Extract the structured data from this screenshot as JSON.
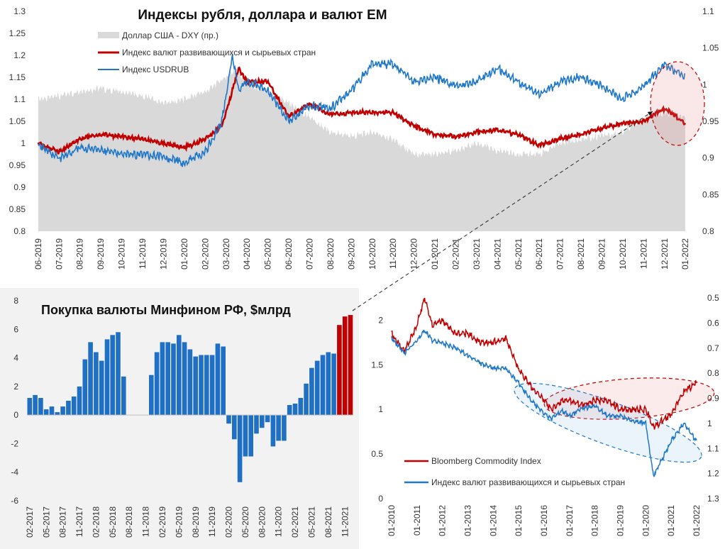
{
  "colors": {
    "dxy": "#d9d9d9",
    "em": "#c00000",
    "usdrub": "#1f77c8",
    "bars_pos": "#1f6fc5",
    "bars_recent": "#c00000",
    "bcom": "#c00000",
    "em2": "#1f77c8"
  },
  "chart_data": [
    {
      "id": "top",
      "type": "line",
      "title": "Индексы рубля, доллара и валют ЕМ",
      "legend": [
        "Доллар США - DXY (пр.)",
        "Индекс валют развивающихся и сырьевых стран",
        "Индекс USDRUB"
      ],
      "ylim": [
        0.8,
        1.3
      ],
      "yticks": [
        "1.3",
        "1.25",
        "1.2",
        "1.15",
        "1.1",
        "1.05",
        "1",
        "0.95",
        "0.9",
        "0.85",
        "0.8"
      ],
      "y2lim": [
        0.8,
        1.1
      ],
      "y2ticks": [
        "1.1",
        "1.05",
        "1",
        "0.95",
        "0.9",
        "0.85",
        "0.8"
      ],
      "xticks": [
        "06-2019",
        "07-2019",
        "08-2019",
        "09-2019",
        "10-2019",
        "11-2019",
        "12-2019",
        "01-2020",
        "02-2020",
        "03-2020",
        "04-2020",
        "05-2020",
        "06-2020",
        "07-2020",
        "08-2020",
        "09-2020",
        "10-2020",
        "11-2020",
        "12-2020",
        "01-2021",
        "02-2021",
        "03-2021",
        "04-2021",
        "05-2021",
        "06-2021",
        "07-2021",
        "08-2021",
        "09-2021",
        "10-2021",
        "11-2021",
        "12-2021",
        "01-2022"
      ],
      "series": [
        {
          "name": "Доллар США - DXY (пр.)",
          "axis": "right",
          "points": [
            [
              0,
              0.98
            ],
            [
              1,
              0.985
            ],
            [
              2,
              0.99
            ],
            [
              3,
              0.995
            ],
            [
              4,
              0.99
            ],
            [
              5,
              0.985
            ],
            [
              6,
              0.975
            ],
            [
              7,
              0.98
            ],
            [
              8,
              0.99
            ],
            [
              9,
              1.01
            ],
            [
              9.5,
              1.02
            ],
            [
              10,
              1.0
            ],
            [
              11,
              0.99
            ],
            [
              12,
              0.975
            ],
            [
              13,
              0.955
            ],
            [
              14,
              0.935
            ],
            [
              15,
              0.93
            ],
            [
              16,
              0.935
            ],
            [
              17,
              0.925
            ],
            [
              18,
              0.905
            ],
            [
              19,
              0.905
            ],
            [
              20,
              0.91
            ],
            [
              21,
              0.92
            ],
            [
              22,
              0.91
            ],
            [
              23,
              0.905
            ],
            [
              24,
              0.905
            ],
            [
              25,
              0.92
            ],
            [
              26,
              0.925
            ],
            [
              27,
              0.93
            ],
            [
              28,
              0.935
            ],
            [
              29,
              0.955
            ],
            [
              30,
              0.96
            ],
            [
              31,
              0.955
            ]
          ]
        },
        {
          "name": "Индекс валют развивающихся и сырьевых стран",
          "axis": "left",
          "points": [
            [
              0,
              1.0
            ],
            [
              1,
              0.98
            ],
            [
              2,
              1.01
            ],
            [
              3,
              1.02
            ],
            [
              4,
              1.015
            ],
            [
              5,
              1.01
            ],
            [
              6,
              1.0
            ],
            [
              7,
              0.99
            ],
            [
              8,
              1.01
            ],
            [
              8.8,
              1.04
            ],
            [
              9.3,
              1.12
            ],
            [
              9.6,
              1.17
            ],
            [
              10,
              1.14
            ],
            [
              11,
              1.14
            ],
            [
              12,
              1.06
            ],
            [
              13,
              1.09
            ],
            [
              14,
              1.065
            ],
            [
              15,
              1.07
            ],
            [
              16,
              1.07
            ],
            [
              17,
              1.07
            ],
            [
              18,
              1.04
            ],
            [
              19,
              1.02
            ],
            [
              20,
              1.015
            ],
            [
              21,
              1.025
            ],
            [
              22,
              1.03
            ],
            [
              23,
              1.02
            ],
            [
              24,
              0.995
            ],
            [
              25,
              1.01
            ],
            [
              26,
              1.02
            ],
            [
              27,
              1.035
            ],
            [
              28,
              1.045
            ],
            [
              29,
              1.05
            ],
            [
              30,
              1.08
            ],
            [
              31,
              1.045
            ]
          ]
        },
        {
          "name": "Индекс USDRUB",
          "axis": "left",
          "points": [
            [
              0,
              1.0
            ],
            [
              1,
              0.965
            ],
            [
              2,
              0.99
            ],
            [
              3,
              0.985
            ],
            [
              4,
              0.975
            ],
            [
              5,
              0.975
            ],
            [
              6,
              0.97
            ],
            [
              7,
              0.955
            ],
            [
              8,
              0.98
            ],
            [
              8.8,
              1.05
            ],
            [
              9.3,
              1.2
            ],
            [
              9.6,
              1.12
            ],
            [
              10,
              1.14
            ],
            [
              11,
              1.12
            ],
            [
              12,
              1.05
            ],
            [
              13,
              1.085
            ],
            [
              14,
              1.08
            ],
            [
              15,
              1.12
            ],
            [
              16,
              1.18
            ],
            [
              17,
              1.18
            ],
            [
              18,
              1.14
            ],
            [
              19,
              1.15
            ],
            [
              20,
              1.13
            ],
            [
              21,
              1.14
            ],
            [
              22,
              1.17
            ],
            [
              23,
              1.14
            ],
            [
              24,
              1.11
            ],
            [
              25,
              1.14
            ],
            [
              26,
              1.15
            ],
            [
              27,
              1.13
            ],
            [
              28,
              1.1
            ],
            [
              29,
              1.13
            ],
            [
              30,
              1.18
            ],
            [
              31,
              1.15
            ]
          ]
        }
      ]
    },
    {
      "id": "bottom_left",
      "type": "bar",
      "title": "Покупка валюты Минфином РФ, $млрд",
      "ylim": [
        -6,
        8
      ],
      "yticks": [
        "8",
        "6",
        "4",
        "2",
        "0",
        "-2",
        "-4",
        "-6"
      ],
      "xticks": [
        "02-2017",
        "05-2017",
        "08-2017",
        "11-2017",
        "02-2018",
        "05-2018",
        "08-2018",
        "11-2018",
        "02-2019",
        "05-2019",
        "08-2019",
        "11-2019",
        "02-2020",
        "05-2020",
        "08-2020",
        "11-2020",
        "02-2021",
        "05-2021",
        "08-2021",
        "11-2021"
      ],
      "values": [
        1.2,
        1.4,
        1.2,
        0.4,
        0.6,
        0.2,
        0.6,
        1.0,
        1.3,
        2.0,
        3.9,
        5.1,
        4.4,
        3.8,
        5.3,
        5.6,
        5.8,
        2.7,
        0,
        0,
        0,
        0,
        2.8,
        4.4,
        5.1,
        5.1,
        5.0,
        5.6,
        5.1,
        4.6,
        4.1,
        4.2,
        4.2,
        4.2,
        5.0,
        4.8,
        -0.6,
        -1.7,
        -4.7,
        -2.9,
        -2.9,
        -1.3,
        -0.9,
        -0.5,
        -2.2,
        -1.8,
        -1.8,
        0.7,
        0.8,
        1.2,
        2.2,
        3.3,
        3.8,
        4.2,
        4.4,
        4.3,
        6.3,
        6.9,
        7.0
      ],
      "recent_count": 3
    },
    {
      "id": "bottom_right",
      "type": "line",
      "legend": [
        "Bloomberg Commodity Index",
        "Индекс валют развивающихся и сырьевых стран"
      ],
      "ylim": [
        0,
        2.25
      ],
      "yticks": [
        "2",
        "1.5",
        "1",
        "0.5",
        "0"
      ],
      "y2lim": [
        1.3,
        0.5
      ],
      "y2ticks": [
        "0.5",
        "0.6",
        "0.7",
        "0.8",
        "0.9",
        "1",
        "1.1",
        "1.2",
        "1.3"
      ],
      "xticks": [
        "01-2010",
        "01-2011",
        "01-2012",
        "01-2013",
        "01-2014",
        "01-2015",
        "01-2016",
        "01-2017",
        "01-2018",
        "01-2019",
        "01-2020",
        "01-2021",
        "01-2022"
      ],
      "series": [
        {
          "name": "Bloomberg Commodity Index",
          "axis": "left",
          "points": [
            [
              0,
              1.85
            ],
            [
              0.5,
              1.65
            ],
            [
              1.0,
              1.95
            ],
            [
              1.3,
              2.25
            ],
            [
              1.6,
              1.95
            ],
            [
              2,
              2.0
            ],
            [
              2.5,
              1.85
            ],
            [
              3,
              1.85
            ],
            [
              3.5,
              1.75
            ],
            [
              4,
              1.75
            ],
            [
              4.5,
              1.8
            ],
            [
              5,
              1.45
            ],
            [
              5.5,
              1.25
            ],
            [
              6,
              1.1
            ],
            [
              6.3,
              1.0
            ],
            [
              6.7,
              1.1
            ],
            [
              7,
              1.1
            ],
            [
              7.5,
              1.05
            ],
            [
              8,
              1.1
            ],
            [
              8.5,
              1.1
            ],
            [
              9,
              1.0
            ],
            [
              9.5,
              1.0
            ],
            [
              10,
              1.0
            ],
            [
              10.3,
              0.8
            ],
            [
              11,
              0.95
            ],
            [
              11.5,
              1.2
            ],
            [
              12,
              1.3
            ]
          ]
        },
        {
          "name": "Индекс валют развивающихся и сырьевых стран",
          "axis": "right",
          "points": [
            [
              0,
              0.66
            ],
            [
              0.5,
              0.72
            ],
            [
              1.0,
              0.67
            ],
            [
              1.3,
              0.63
            ],
            [
              1.6,
              0.67
            ],
            [
              2,
              0.68
            ],
            [
              2.5,
              0.7
            ],
            [
              3,
              0.73
            ],
            [
              3.5,
              0.76
            ],
            [
              4,
              0.78
            ],
            [
              4.5,
              0.78
            ],
            [
              5,
              0.84
            ],
            [
              5.5,
              0.91
            ],
            [
              6,
              0.96
            ],
            [
              6.3,
              0.98
            ],
            [
              6.7,
              0.95
            ],
            [
              7,
              0.97
            ],
            [
              7.5,
              0.94
            ],
            [
              8,
              0.93
            ],
            [
              8.5,
              0.97
            ],
            [
              9,
              0.97
            ],
            [
              9.5,
              0.99
            ],
            [
              10,
              1.0
            ],
            [
              10.3,
              1.21
            ],
            [
              11,
              1.07
            ],
            [
              11.5,
              1.0
            ],
            [
              12,
              1.07
            ]
          ]
        }
      ]
    }
  ]
}
